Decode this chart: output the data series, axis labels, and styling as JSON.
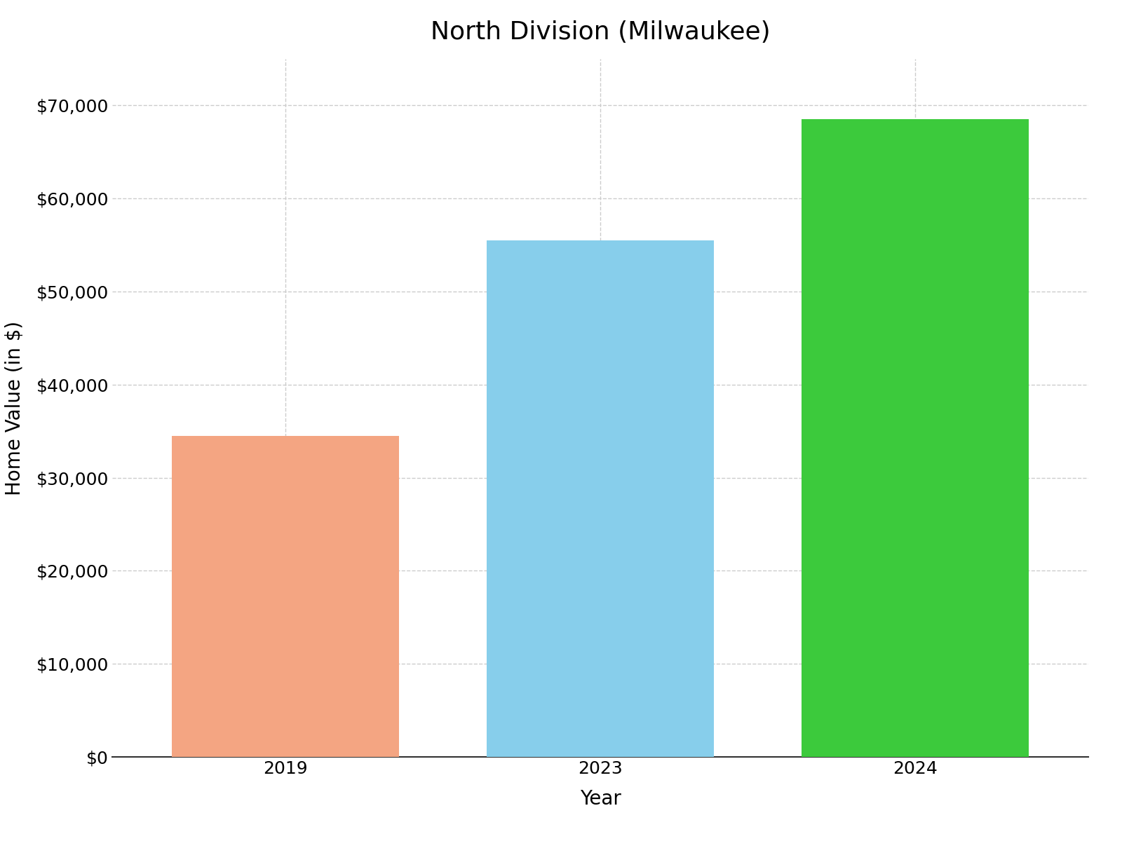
{
  "title": "North Division (Milwaukee)",
  "categories": [
    "2019",
    "2023",
    "2024"
  ],
  "values": [
    34500,
    55500,
    68500
  ],
  "bar_colors": [
    "#F4A582",
    "#87CEEB",
    "#3CCA3C"
  ],
  "xlabel": "Year",
  "ylabel": "Home Value (in $)",
  "ylim": [
    0,
    75000
  ],
  "yticks": [
    0,
    10000,
    20000,
    30000,
    40000,
    50000,
    60000,
    70000
  ],
  "title_fontsize": 26,
  "axis_label_fontsize": 20,
  "tick_fontsize": 18,
  "bar_width": 0.72,
  "grid": true,
  "background_color": "#ffffff"
}
